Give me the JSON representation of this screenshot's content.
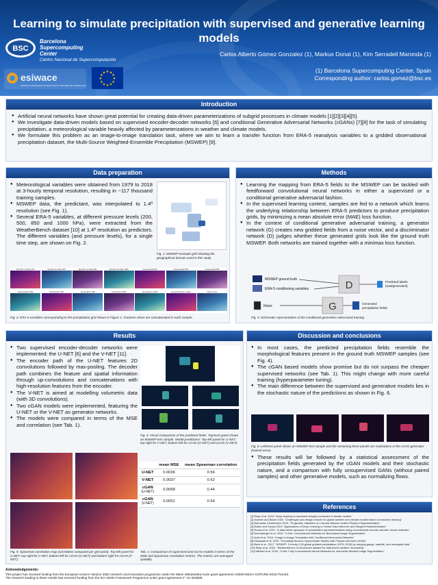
{
  "title": "Learning to simulate precipitation with supervised and generative learning models",
  "authors": "Carlos Alberto Gómez Gonzalez (1), Markus Donat (1), Kim Serradell Maronda (1)",
  "affiliation": [
    "(1)  Barcelona Supercomputing Center, Spain",
    "Corresponding author: carlos.gomez@bsc.es"
  ],
  "logo_bsc": {
    "mark": "BSC",
    "lines": [
      "Barcelona",
      "Supercomputing",
      "Center"
    ],
    "sub": "Centro Nacional de Supercomputación"
  },
  "logo_esiwace": {
    "mark": "esiwace",
    "tagline": "CENTRE OF EXCELLENCE IN SIMULATION OF WEATHER AND CLIMATE IN EUROPE"
  },
  "introduction": {
    "heading": "Introduction",
    "bullets": [
      "Artificial neural networks have shown great potential for creating data-driven parameterizations of subgrid processes in climate models [1][2][3][4][5].",
      "We investigate data-driven models based on supervised encoder-decoder networks [6] and conditional Generative Adversarial Networks (cGANs) [7][8] for the task of simulating precipitation, a meteorological variable heavily affected by parameterizations in weather and climate models.",
      "We formulate this problem as an image-to-image translation task, where we aim to learn a transfer function from ERA-5 reanalysis variables to a gridded observational precipitation dataset, the Multi-Source Weighted-Ensemble Precipitation (MSWEP) [9]."
    ]
  },
  "data_prep": {
    "heading": "Data preparation",
    "bullets": [
      "Meteorological variables were obtained from 1979 to 2018 at 3-hourly temporal resolution, resulting in ~117 thousand training samples.",
      "MSWEP data, the predictant, was interpolated to 1.4º resolution (see Fig. 1).",
      "Several ERA-5 variables, at different pressure levels (200, 500, 850 and 1000 hPa), were extracted from the WeatherBench dataset [10] at 1.4º resolution as predictors. The different variables (and pressure levels), for a single time step, are shown on Fig. 2."
    ],
    "fig1_caption": "Fig. 1: MSWEP example grid showing the geographical domain used in this study.",
    "fig2_caption": "Fig. 2: ERA-5 variables corresponding to the precipitation grid shown in Figure 1. Fourteen slices are concatenated in each sample.",
    "fig2_panel_titles": [
      "Specific humidity 200",
      "Specific humidity 500",
      "Specific humidity 850",
      "Specific humidity 1000",
      "Geopotential 200",
      "Geopotential 500",
      "Geopotential 850",
      "Geopotential 1000",
      "Temperature 200",
      "Temperature 500",
      "Temperature 850",
      "Temperature 1000",
      "Geopotential at surface",
      "Cloud cover"
    ]
  },
  "methods": {
    "heading": "Methods",
    "bullets": [
      "Learning the mapping from ERA-5 fields to the MSWEP can be tackled with feedforward convolutional neural networks in either a supervised or a conditional generative adversarial fashion.",
      "In the supervised learning context, samples are fed to a network which learns the underlying relationship between ERA-5 predictors to produce precipitation grids, by minimizing a mean absolute error (MAE) loss function.",
      "In the context of conditional generative adversarial training, a generator network (G) creates new gridded fields from a noise vector, and a discriminator network (D) judges whether these generated grids look like the ground truth MSWEP. Both networks are trained together with a minimax loss function."
    ],
    "diagram": {
      "mswep": "MSWEP ground truth",
      "era5": "ERA-5 conditioning variables",
      "noise": "Noise",
      "D": "D",
      "G": "G",
      "pred": [
        "Predicted labels",
        "(real/generated)"
      ],
      "gen": [
        "Generated",
        "precipitation fields"
      ]
    },
    "fig3_caption": "Fig. 3: Schematic representation of the conditional generative adversarial training."
  },
  "results": {
    "heading": "Results",
    "bullets": [
      "Two supervised encoder-decoder networks were implemented: the U-NET [6] and the V-NET [11].",
      "The encoder path of the U-NET features 2D convolutions followed by max-pooling. The decoder path combines the feature and spatial information through up-convolutions and concatenations with high-resolution features from the encoder.",
      "The V-NET is aimed at modelling volumetric data (with 3D convolutions).",
      "Two cGAN models were implemented, featuring the U-NET or the V-NET as generator networks.",
      "The models were compared in terms of the MSE and correlation (see Tab. 1)."
    ],
    "fig4_caption": "Fig. 4: Visual comparison of the predicted fields. Topmost panel shows an MSWEP test sample. Model predictions: Top-left panel for U-NET, top-right for V-NET, bottom-left for cGAN (U-NET) and cGAN (V-NET).",
    "fig5_caption": "Fig. 5: Spearman correlation map (correlation computed per grid point). Top-left panel for U-NET, top-right for V-NET, bottom-left for cGAN (U-NET) and bottom-right for cGAN (V-NET).",
    "table": {
      "headers": [
        "",
        "mean MSE",
        "mean Spearman correlation"
      ],
      "rows": [
        {
          "model": "U-NET",
          "sub": "",
          "mse": "0.0036",
          "corr": "0.56"
        },
        {
          "model": "V-NET",
          "sub": "",
          "mse": "0.0037",
          "corr": "0.62"
        },
        {
          "model": "cGAN",
          "sub": "(U-NET)",
          "mse": "0.0068",
          "corr": "0.44"
        },
        {
          "model": "cGAN",
          "sub": "(V-NET)",
          "mse": "0.0051",
          "corr": "0.54"
        }
      ],
      "caption": "Tab. 1: Comparison of supervised and cGAN models in terms of the MSE and Spearman correlation metrics. The metrics are averaged spatially."
    }
  },
  "discussion": {
    "heading": "Discussion and conclusions",
    "bullets": [
      "In most cases, the predicted precipitation fields resemble the morphological features present in the ground truth MSWEP samples (see Fig. 4).",
      "The cGAN based models show promise but do not surpass the cheaper supervised networks (see Tab. 1). This might change with more careful training (hyperparameter tuning).",
      "The main difference between the supervised and generative models lies in the stochastic nature of the predictions as shown in Fig. 6."
    ],
    "fig6_caption": "Fig. 6: Leftmost panel shows an MSWEP test sample and the remaining three panels are realizations of the cGAN generator (trained once).",
    "bullets2": [
      "These results will be followed by a statistical assessment of the precipitation fields generated by the cGAN models and their stochastic nature, and a comparison with fully unsupervised GANs (without paired samples) and other generative models, such as normalizing flows."
    ]
  },
  "references": {
    "heading": "References",
    "items": [
      "[1] Rasp et al. 2018. \"Deep learning to represent subgrid processes in climate models\"",
      "[2] Dueben and Bauer 2018. \"Challenges and design choices for global weather and climate models based on machine learning\"",
      "[3] Brenowitz & Bretherton 2019. \"Prognostic Validation of a Neural Network Unified Physics Parameterization\"",
      "[4] Bolton and Zanna 2019. \"Applications of Deep Learning to Ocean Data Inference and Subgrid Parameterization\"",
      "[5] Rozas et al. 2019. \"A data-driven approach to precipitation parameterizations using convolutional encoder-decoder neural networks\"",
      "[6] Ronneberger et al. 2015. \"U-Net: Convolutional Networks for Biomedical Image Segmentation\"",
      "[7] Isola et al. 2016. \"Image-to-Image Translation with Conditional Adversarial Networks\"",
      "[8] Manepalli et al. 2019. \"Emulating Numeric Hydroclimate Models with Physics-Informed cGANs\"",
      "[9] Beck et al., 2017. \"MSWEP: 3-hourly 0.25-global gridded precipitation (1979–2015) by merging gauge, satellite, and reanalysis data\"",
      "[10] Rasp et al. 2020. \"WeatherBench: A benchmark dataset for data-driven weather forecasting\"",
      "[11] Milletari et al. 2016. \"V-Net: Fully Convolutional Neural Networks for Volumetric Medical Image Segmentation\""
    ]
  },
  "acknowledgements": {
    "heading": "Acknowledgements:",
    "lines": [
      "This project has received funding from the European Union's Horizon 2020 research and innovation programme under the Marie Skłodowska-Curie grant agreement H2020-MSCA-COFUND-2016-754433.",
      "The research leading to these results has received funding from the EU H2020 Framework Programme under grant agreement n° GA 823988."
    ]
  },
  "colors": {
    "header_top": "#0a3a7a",
    "header_bottom": "#3f7fd0",
    "section_head": "#1f57a8",
    "figure_bg": "#0b1a33"
  }
}
